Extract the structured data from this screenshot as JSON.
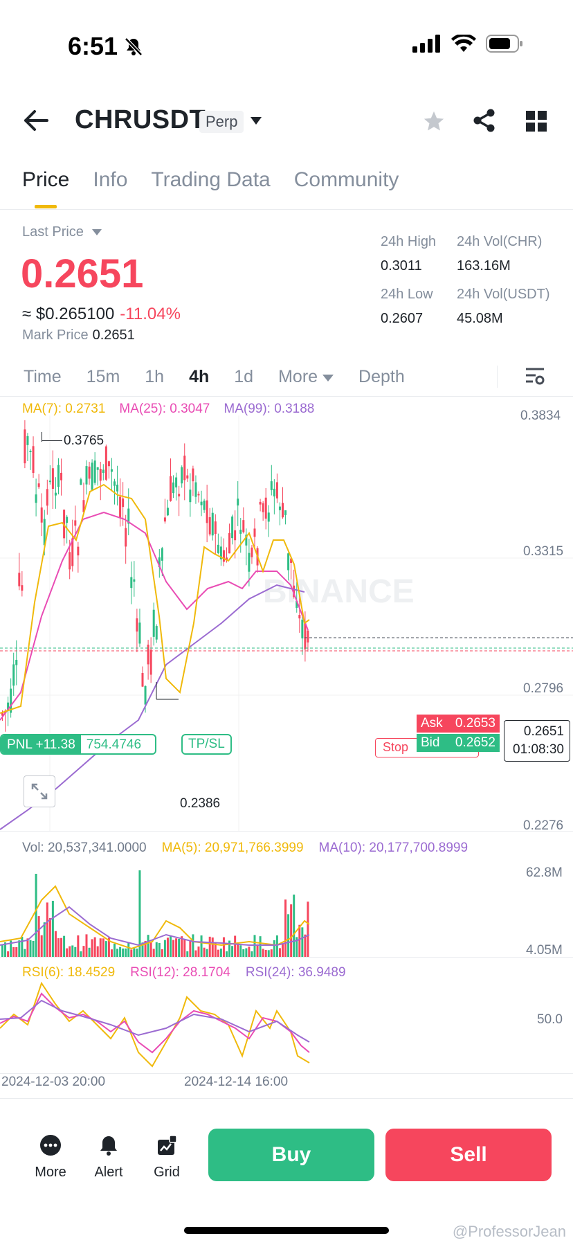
{
  "status": {
    "time": "6:51"
  },
  "header": {
    "title": "CHRUSDT",
    "badge": "Perp"
  },
  "tabs": [
    {
      "label": "Price",
      "active": true
    },
    {
      "label": "Info",
      "active": false
    },
    {
      "label": "Trading Data",
      "active": false
    },
    {
      "label": "Community",
      "active": false
    }
  ],
  "price": {
    "last_price_label": "Last Price",
    "value": "0.2651",
    "approx": "≈ $0.265100",
    "change": "-11.04%",
    "mark_label": "Mark Price",
    "mark_value": "0.2651"
  },
  "stats": {
    "high_label": "24h High",
    "high": "0.3011",
    "vol_chr_label": "24h Vol(CHR)",
    "vol_chr": "163.16M",
    "low_label": "24h Low",
    "low": "0.2607",
    "vol_usdt_label": "24h Vol(USDT)",
    "vol_usdt": "45.08M"
  },
  "intervals": [
    {
      "label": "Time",
      "active": false
    },
    {
      "label": "15m",
      "active": false
    },
    {
      "label": "1h",
      "active": false
    },
    {
      "label": "4h",
      "active": true
    },
    {
      "label": "1d",
      "active": false
    },
    {
      "label": "More",
      "active": false
    },
    {
      "label": "Depth",
      "active": false
    }
  ],
  "ma": {
    "ma7": "MA(7): 0.2731",
    "ma25": "MA(25): 0.3047",
    "ma99": "MA(99): 0.3188"
  },
  "chart_axis": {
    "y1": "0.3834",
    "y2": "0.3315",
    "y3": "0.2796",
    "y4": "0.2276"
  },
  "chart_marks": {
    "high": "0.3765",
    "low": "0.2386"
  },
  "position": {
    "pnl": "PNL +11.38",
    "qty": "754.4746",
    "tpsl": "TP/SL",
    "stop": "Stop"
  },
  "order_book": {
    "ask_label": "Ask",
    "ask": "0.2653",
    "bid_label": "Bid",
    "bid": "0.2652",
    "current": "0.2651",
    "countdown": "01:08:30"
  },
  "volume": {
    "vol": "Vol: 20,537,341.0000",
    "ma5": "MA(5): 20,971,766.3999",
    "ma10": "MA(10): 20,177,700.8999",
    "top": "62.8M",
    "bottom": "4.05M"
  },
  "rsi": {
    "rsi6": "RSI(6): 18.4529",
    "rsi12": "RSI(12): 28.1704",
    "rsi24": "RSI(24): 36.9489",
    "mid": "50.0"
  },
  "x_axis": {
    "d1": "2024-12-03 20:00",
    "d2": "2024-12-14 16:00"
  },
  "watermark_text": "BINANCE",
  "bottom": {
    "more": "More",
    "alert": "Alert",
    "grid": "Grid",
    "buy": "Buy",
    "sell": "Sell"
  },
  "credit": "@ProfessorJean",
  "colors": {
    "up": "#2ebd85",
    "down": "#f6465d",
    "accent": "#f0b90b",
    "ma7": "#f0b90b",
    "ma25": "#e94cb4",
    "ma99": "#9b6bd1"
  }
}
